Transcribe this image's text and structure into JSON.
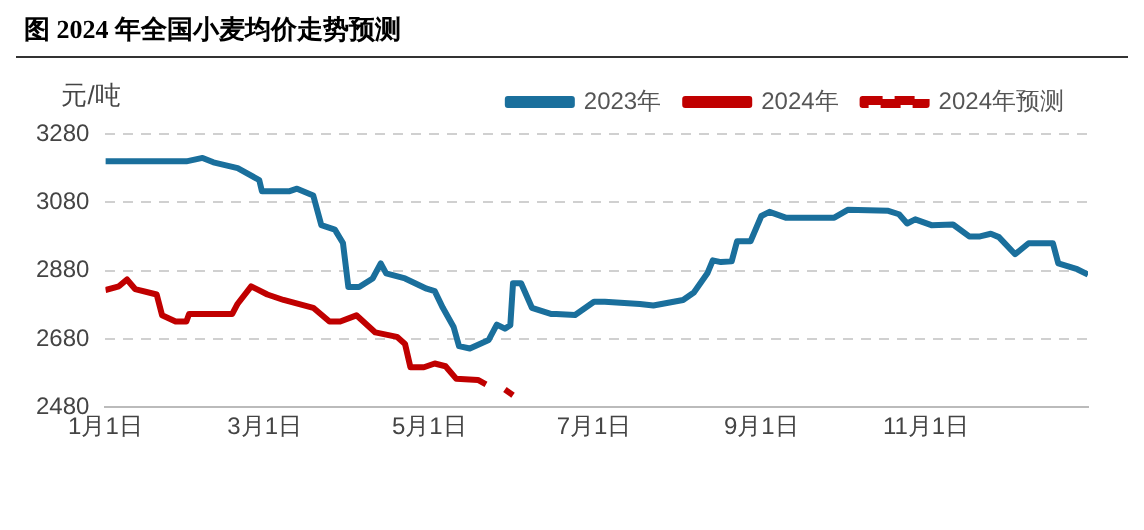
{
  "chart_data": {
    "type": "line",
    "title": "图 2024 年全国小麦均价走势预测",
    "ylabel": "元/吨",
    "xlim": [
      "--01-01",
      "--12-31"
    ],
    "xticks": [
      {
        "value": "--01-01",
        "label": "1月1日"
      },
      {
        "value": "--03-01",
        "label": "3月1日"
      },
      {
        "value": "--05-01",
        "label": "5月1日"
      },
      {
        "value": "--07-01",
        "label": "7月1日"
      },
      {
        "value": "--09-01",
        "label": "9月1日"
      },
      {
        "value": "--11-01",
        "label": "11月1日"
      }
    ],
    "ylim": [
      2480,
      3280
    ],
    "yticks": [
      2480,
      2680,
      2880,
      3080,
      3280
    ],
    "grid": "y",
    "legend": "top right",
    "marker": "none",
    "series": [
      {
        "name": "2023年",
        "color": "#1a6f9c",
        "x": [
          "--01-01",
          "--01-31",
          "--02-06",
          "--02-10",
          "--02-19",
          "--02-27",
          "--02-28",
          "--03-10",
          "--03-13",
          "--03-19",
          "--03-22",
          "--03-27",
          "--03-30",
          "--04-01",
          "--04-05",
          "--04-10",
          "--04-13",
          "--04-15",
          "--04-22",
          "--04-30",
          "--05-03",
          "--05-06",
          "--05-10",
          "--05-12",
          "--05-16",
          "--05-23",
          "--05-26",
          "--05-29",
          "--05-31",
          "--06-01",
          "--06-04",
          "--06-08",
          "--06-15",
          "--06-17",
          "--06-24",
          "--07-01",
          "--07-05",
          "--07-18",
          "--07-23",
          "--08-03",
          "--08-07",
          "--08-12",
          "--08-14",
          "--08-17",
          "--08-21",
          "--08-23",
          "--08-28",
          "--09-01",
          "--09-04",
          "--09-10",
          "--09-28",
          "--10-03",
          "--10-18",
          "--10-22",
          "--10-25",
          "--10-28",
          "--11-03",
          "--11-11",
          "--11-17",
          "--11-21",
          "--11-25",
          "--11-28",
          "--12-04",
          "--12-09",
          "--12-18",
          "--12-20",
          "--12-27",
          "--12-31"
        ],
        "values": [
          3200,
          3200,
          3210,
          3197,
          3180,
          3145,
          3112,
          3112,
          3120,
          3100,
          3013,
          3000,
          2961,
          2832,
          2832,
          2857,
          2901,
          2872,
          2857,
          2827,
          2820,
          2771,
          2715,
          2659,
          2652,
          2677,
          2722,
          2710,
          2720,
          2843,
          2843,
          2771,
          2753,
          2753,
          2750,
          2789,
          2789,
          2782,
          2778,
          2794,
          2816,
          2872,
          2910,
          2905,
          2907,
          2966,
          2966,
          3040,
          3052,
          3035,
          3035,
          3058,
          3055,
          3045,
          3018,
          3030,
          3013,
          3015,
          2980,
          2980,
          2988,
          2978,
          2928,
          2960,
          2960,
          2901,
          2884,
          2868
        ]
      },
      {
        "name": "2024年",
        "color": "#c00000",
        "x": [
          "--01-01",
          "--01-06",
          "--01-09",
          "--01-12",
          "--01-20",
          "--01-22",
          "--01-27",
          "--01-31",
          "--02-01",
          "--02-17",
          "--02-19",
          "--02-24",
          "--03-02",
          "--03-08",
          "--03-19",
          "--03-25",
          "--03-29",
          "--04-04",
          "--04-11",
          "--04-19",
          "--04-22",
          "--04-24",
          "--04-29",
          "--05-03",
          "--05-07",
          "--05-11",
          "--05-19",
          "--05-22"
        ],
        "values": [
          2823,
          2834,
          2854,
          2826,
          2810,
          2749,
          2731,
          2731,
          2753,
          2753,
          2783,
          2834,
          2810,
          2794,
          2771,
          2731,
          2731,
          2749,
          2699,
          2686,
          2665,
          2597,
          2597,
          2608,
          2600,
          2563,
          2560,
          2547
        ]
      },
      {
        "name": "2024年预测",
        "color": "#c00000",
        "line_style": "dashed",
        "x": [
          "--05-29",
          "--06-01"
        ],
        "values": [
          2532,
          2515
        ]
      }
    ]
  }
}
